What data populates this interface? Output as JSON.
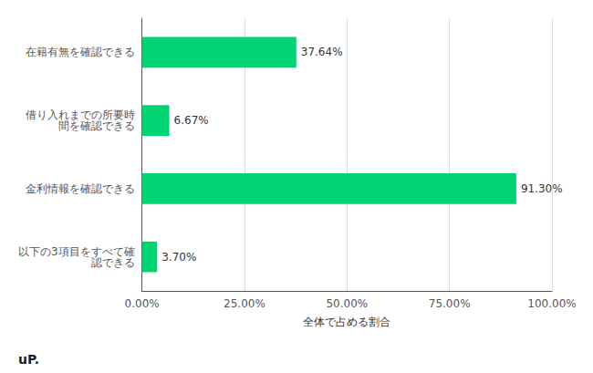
{
  "chart_data": {
    "type": "bar",
    "orientation": "horizontal",
    "categories": [
      "在籍有無を確認できる",
      "借り入れまでの所要時\n間を確認できる",
      "金利情報を確認できる",
      "以下の3項目をすべて確\n認できる"
    ],
    "values": [
      37.64,
      6.67,
      91.3,
      3.7
    ],
    "value_labels": [
      "37.64%",
      "6.67%",
      "91.30%",
      "3.70%"
    ],
    "data_labels": true,
    "color": "#00d473",
    "xlabel": "全体で占める割合",
    "xlim": [
      0,
      100
    ],
    "xticks": [
      {
        "value": 0,
        "label": "0.00%"
      },
      {
        "value": 25,
        "label": "25.00%"
      },
      {
        "value": 50,
        "label": "50.00%"
      },
      {
        "value": 75,
        "label": "75.00%"
      },
      {
        "value": 100,
        "label": "100.00%"
      }
    ],
    "grid": true,
    "annotations": [
      "uP."
    ]
  }
}
